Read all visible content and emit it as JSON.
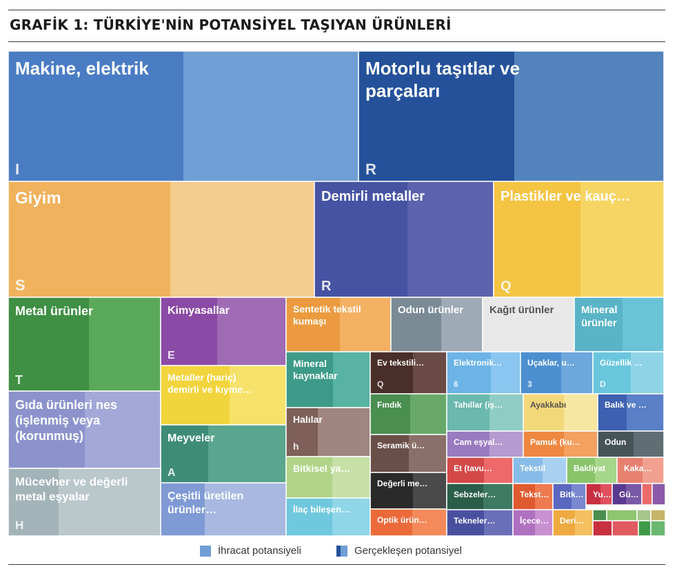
{
  "title": "GRAFİK 1: TÜRKİYE'NİN POTANSİYEL TAŞIYAN ÜRÜNLERİ",
  "legend": {
    "export_potential": "İhracat potansiyeli",
    "realized_potential": "Gerçekleşen potansiyel"
  },
  "colors": {
    "blue": "#6f9fd4",
    "dark_blue": "#2f5fa5",
    "orange": "#f3c07b",
    "indigo": "#5058a6",
    "yellow": "#f5cf5a",
    "green": "#5aa35a",
    "purple": "#9a5ab0",
    "gray_blue": "#8899c9",
    "teal": "#4aa58e",
    "silver": "#aebfc6",
    "brown": "#8a6d62",
    "cyan": "#7fcfe0"
  },
  "chart_data": {
    "type": "treemap",
    "title": "GRAFİK 1: TÜRKİYE'NİN POTANSİYEL TAŞIYAN ÜRÜNLERİ",
    "legend": [
      "İhracat potansiyeli",
      "Gerçekleşen potansiyel"
    ],
    "items": [
      {
        "label": "Makine, elektrik",
        "letter": "I",
        "color": "#6f9fd4",
        "realized_color": "#4a7cc4"
      },
      {
        "label": "Motorlu taşıtlar ve parçaları",
        "letter": "R",
        "color": "#5283bd",
        "realized_color": "#24519a"
      },
      {
        "label": "Giyim",
        "letter": "S",
        "color": "#f4cc8e",
        "realized_color": "#f0b25c"
      },
      {
        "label": "Demirli metaller",
        "letter": "R",
        "color": "#5c62ad",
        "realized_color": "#4653a3"
      },
      {
        "label": "Plastikler ve kauç…",
        "letter": "Q",
        "color": "#f7d564",
        "realized_color": "#f4c443"
      },
      {
        "label": "Metal ürünler",
        "letter": "T",
        "color": "#5aa95a",
        "realized_color": "#3f8f44"
      },
      {
        "label": "Kimyasallar",
        "letter": "E",
        "color": "#a06bb5",
        "realized_color": "#8b4aa5"
      },
      {
        "label": "Sentetik tekstil kumaşı",
        "letter": "",
        "color": "#f4b063",
        "realized_color": "#ec9a3f"
      },
      {
        "label": "Odun ürünler",
        "letter": "",
        "color": "#9eaab5",
        "realized_color": "#7a8b96"
      },
      {
        "label": "Kağıt ürünler",
        "letter": "",
        "color": "#dcdcdc",
        "realized_color": "#e8e8e8"
      },
      {
        "label": "Mineral ürünler",
        "letter": "",
        "color": "#6ac3d6",
        "realized_color": "#5ab4c8"
      },
      {
        "label": "Gıda ürünleri nes (işlenmiş veya (korunmuş)",
        "letter": "",
        "color": "#a3a8d8",
        "realized_color": "#8c93cc"
      },
      {
        "label": "Metaller (hariç) demirli ve kıyme…",
        "letter": "",
        "color": "#f6e26a",
        "realized_color": "#f2d43c"
      },
      {
        "label": "Mineral kaynaklar",
        "letter": "",
        "color": "#58b3a3",
        "realized_color": "#3e9a88"
      },
      {
        "label": "Ev tekstili…",
        "letter": "Q",
        "color": "#6a4a45",
        "realized_color": "#4a2e2a"
      },
      {
        "label": "Elektronik…",
        "letter": "6",
        "color": "#8ac6ef",
        "realized_color": "#6cb4e6"
      },
      {
        "label": "Uçaklar, u…",
        "letter": "3",
        "color": "#6ea7dc",
        "realized_color": "#4c8fd0"
      },
      {
        "label": "Güzellik …",
        "letter": "D",
        "color": "#8fd4e6",
        "realized_color": "#6ac6dd"
      },
      {
        "label": "Meyveler",
        "letter": "A",
        "color": "#5aa68f",
        "realized_color": "#3e8c76"
      },
      {
        "label": "Halılar",
        "letter": "h",
        "color": "#a0867e",
        "realized_color": "#7e6058"
      },
      {
        "label": "Fındık",
        "letter": "",
        "color": "#68a96a",
        "realized_color": "#4a8e50"
      },
      {
        "label": "Tahıllar (iş…",
        "letter": "",
        "color": "#8fccc4",
        "realized_color": "#6ab8ae"
      },
      {
        "label": "Ayakkabı",
        "letter": "",
        "color": "#f7e7a0",
        "realized_color": "#f3d87a"
      },
      {
        "label": "Balık ve …",
        "letter": "",
        "color": "#5a80c8",
        "realized_color": "#3e60b0"
      },
      {
        "label": "Mücevher ve değerli metal eşyalar",
        "letter": "H",
        "color": "#bac7cb",
        "realized_color": "#a3b4b9"
      },
      {
        "label": "Seramik ü…",
        "letter": "",
        "color": "#8a7068",
        "realized_color": "#6a4e48"
      },
      {
        "label": "Cam eşyal…",
        "letter": "",
        "color": "#b59ad0",
        "realized_color": "#9a7ac0"
      },
      {
        "label": "Pamuk (ku…",
        "letter": "",
        "color": "#f4a060",
        "realized_color": "#ee8840"
      },
      {
        "label": "Odun",
        "letter": "",
        "color": "#5e6e72",
        "realized_color": "#465458"
      },
      {
        "label": "Bitkisel ya…",
        "letter": "",
        "color": "#c6e0a6",
        "realized_color": "#b0d488"
      },
      {
        "label": "Değerli me…",
        "letter": "",
        "color": "#4a4a4a",
        "realized_color": "#2a2a2a"
      },
      {
        "label": "Et (tavu…",
        "letter": "",
        "color": "#ee6a6a",
        "realized_color": "#d44848"
      },
      {
        "label": "Tekstil …",
        "letter": "",
        "color": "#a8d0f0",
        "realized_color": "#88bce8"
      },
      {
        "label": "Bakliyat",
        "letter": "",
        "color": "#a6d68a",
        "realized_color": "#88c46a"
      },
      {
        "label": "Kaka…",
        "letter": "",
        "color": "#f2a090",
        "realized_color": "#e88070"
      },
      {
        "label": "Çeşitli üretilen ürünler…",
        "letter": "",
        "color": "#a8b8e0",
        "realized_color": "#7f9ad4"
      },
      {
        "label": "Sebzeler…",
        "letter": "",
        "color": "#3e7a62",
        "realized_color": "#2a5e4a"
      },
      {
        "label": "Tekst…",
        "letter": "",
        "color": "#ee7a50",
        "realized_color": "#e05a30"
      },
      {
        "label": "Bitk…",
        "letter": "",
        "color": "#7a88d0",
        "realized_color": "#5a68c0"
      },
      {
        "label": "Yu…",
        "letter": "",
        "color": "#e0505e",
        "realized_color": "#c83040"
      },
      {
        "label": "Gü…",
        "letter": "",
        "color": "#7a58a8",
        "realized_color": "#5a3a90"
      },
      {
        "label": "İlaç bileşen…",
        "letter": "",
        "color": "#8fd6e8",
        "realized_color": "#70c8de"
      },
      {
        "label": "Optik ürün…",
        "letter": "",
        "color": "#f48a5a",
        "realized_color": "#ec6a3a"
      },
      {
        "label": "Tekneler…",
        "letter": "",
        "color": "#6a70b8",
        "realized_color": "#4a50a0"
      },
      {
        "label": "İçece…",
        "letter": "",
        "color": "#c890d0",
        "realized_color": "#b070c0"
      },
      {
        "label": "Deri…",
        "letter": "",
        "color": "#f4c060",
        "realized_color": "#eeaa40"
      }
    ]
  }
}
